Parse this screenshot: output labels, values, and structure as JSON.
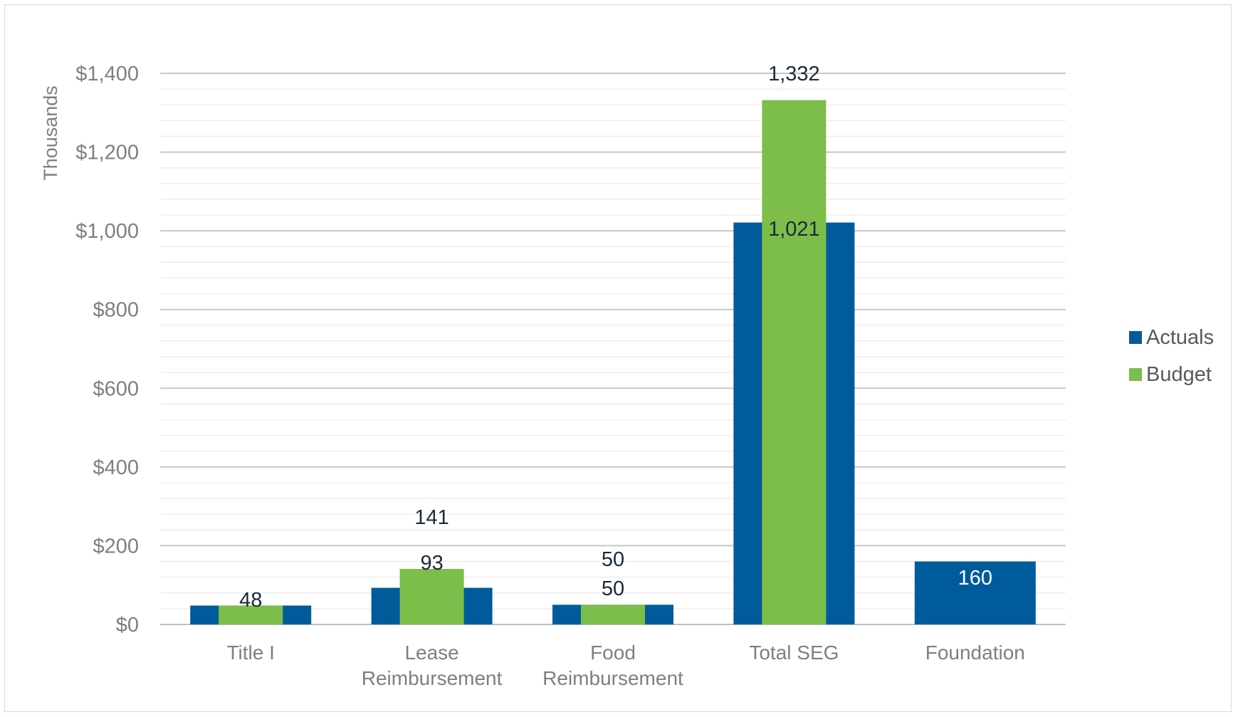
{
  "chart_data": {
    "type": "bar",
    "ylabel": "Thousands",
    "ylim": [
      0,
      1400
    ],
    "y_ticks": [
      {
        "value": 0,
        "label": "$0"
      },
      {
        "value": 200,
        "label": "$200"
      },
      {
        "value": 400,
        "label": "$400"
      },
      {
        "value": 600,
        "label": "$600"
      },
      {
        "value": 800,
        "label": "$800"
      },
      {
        "value": 1000,
        "label": "$1,000"
      },
      {
        "value": 1200,
        "label": "$1,200"
      },
      {
        "value": 1400,
        "label": "$1,400"
      }
    ],
    "minor_grid_step": 40,
    "categories": [
      [
        "Title I"
      ],
      [
        "Lease",
        "Reimbursement"
      ],
      [
        "Food",
        "Reimbursement"
      ],
      [
        "Total SEG"
      ],
      [
        "Foundation"
      ]
    ],
    "series": [
      {
        "name": "Actuals",
        "color": "#005b9a",
        "values": [
          48,
          93,
          50,
          1021,
          160
        ],
        "labels": [
          "",
          "93",
          "50",
          "1,021",
          "160"
        ]
      },
      {
        "name": "Budget",
        "color": "#7dbd4a",
        "values": [
          48,
          141,
          50,
          1332,
          null
        ],
        "labels": [
          "48",
          "141",
          "50",
          "1,332",
          ""
        ]
      }
    ],
    "legend_position": "right",
    "grid": true
  }
}
